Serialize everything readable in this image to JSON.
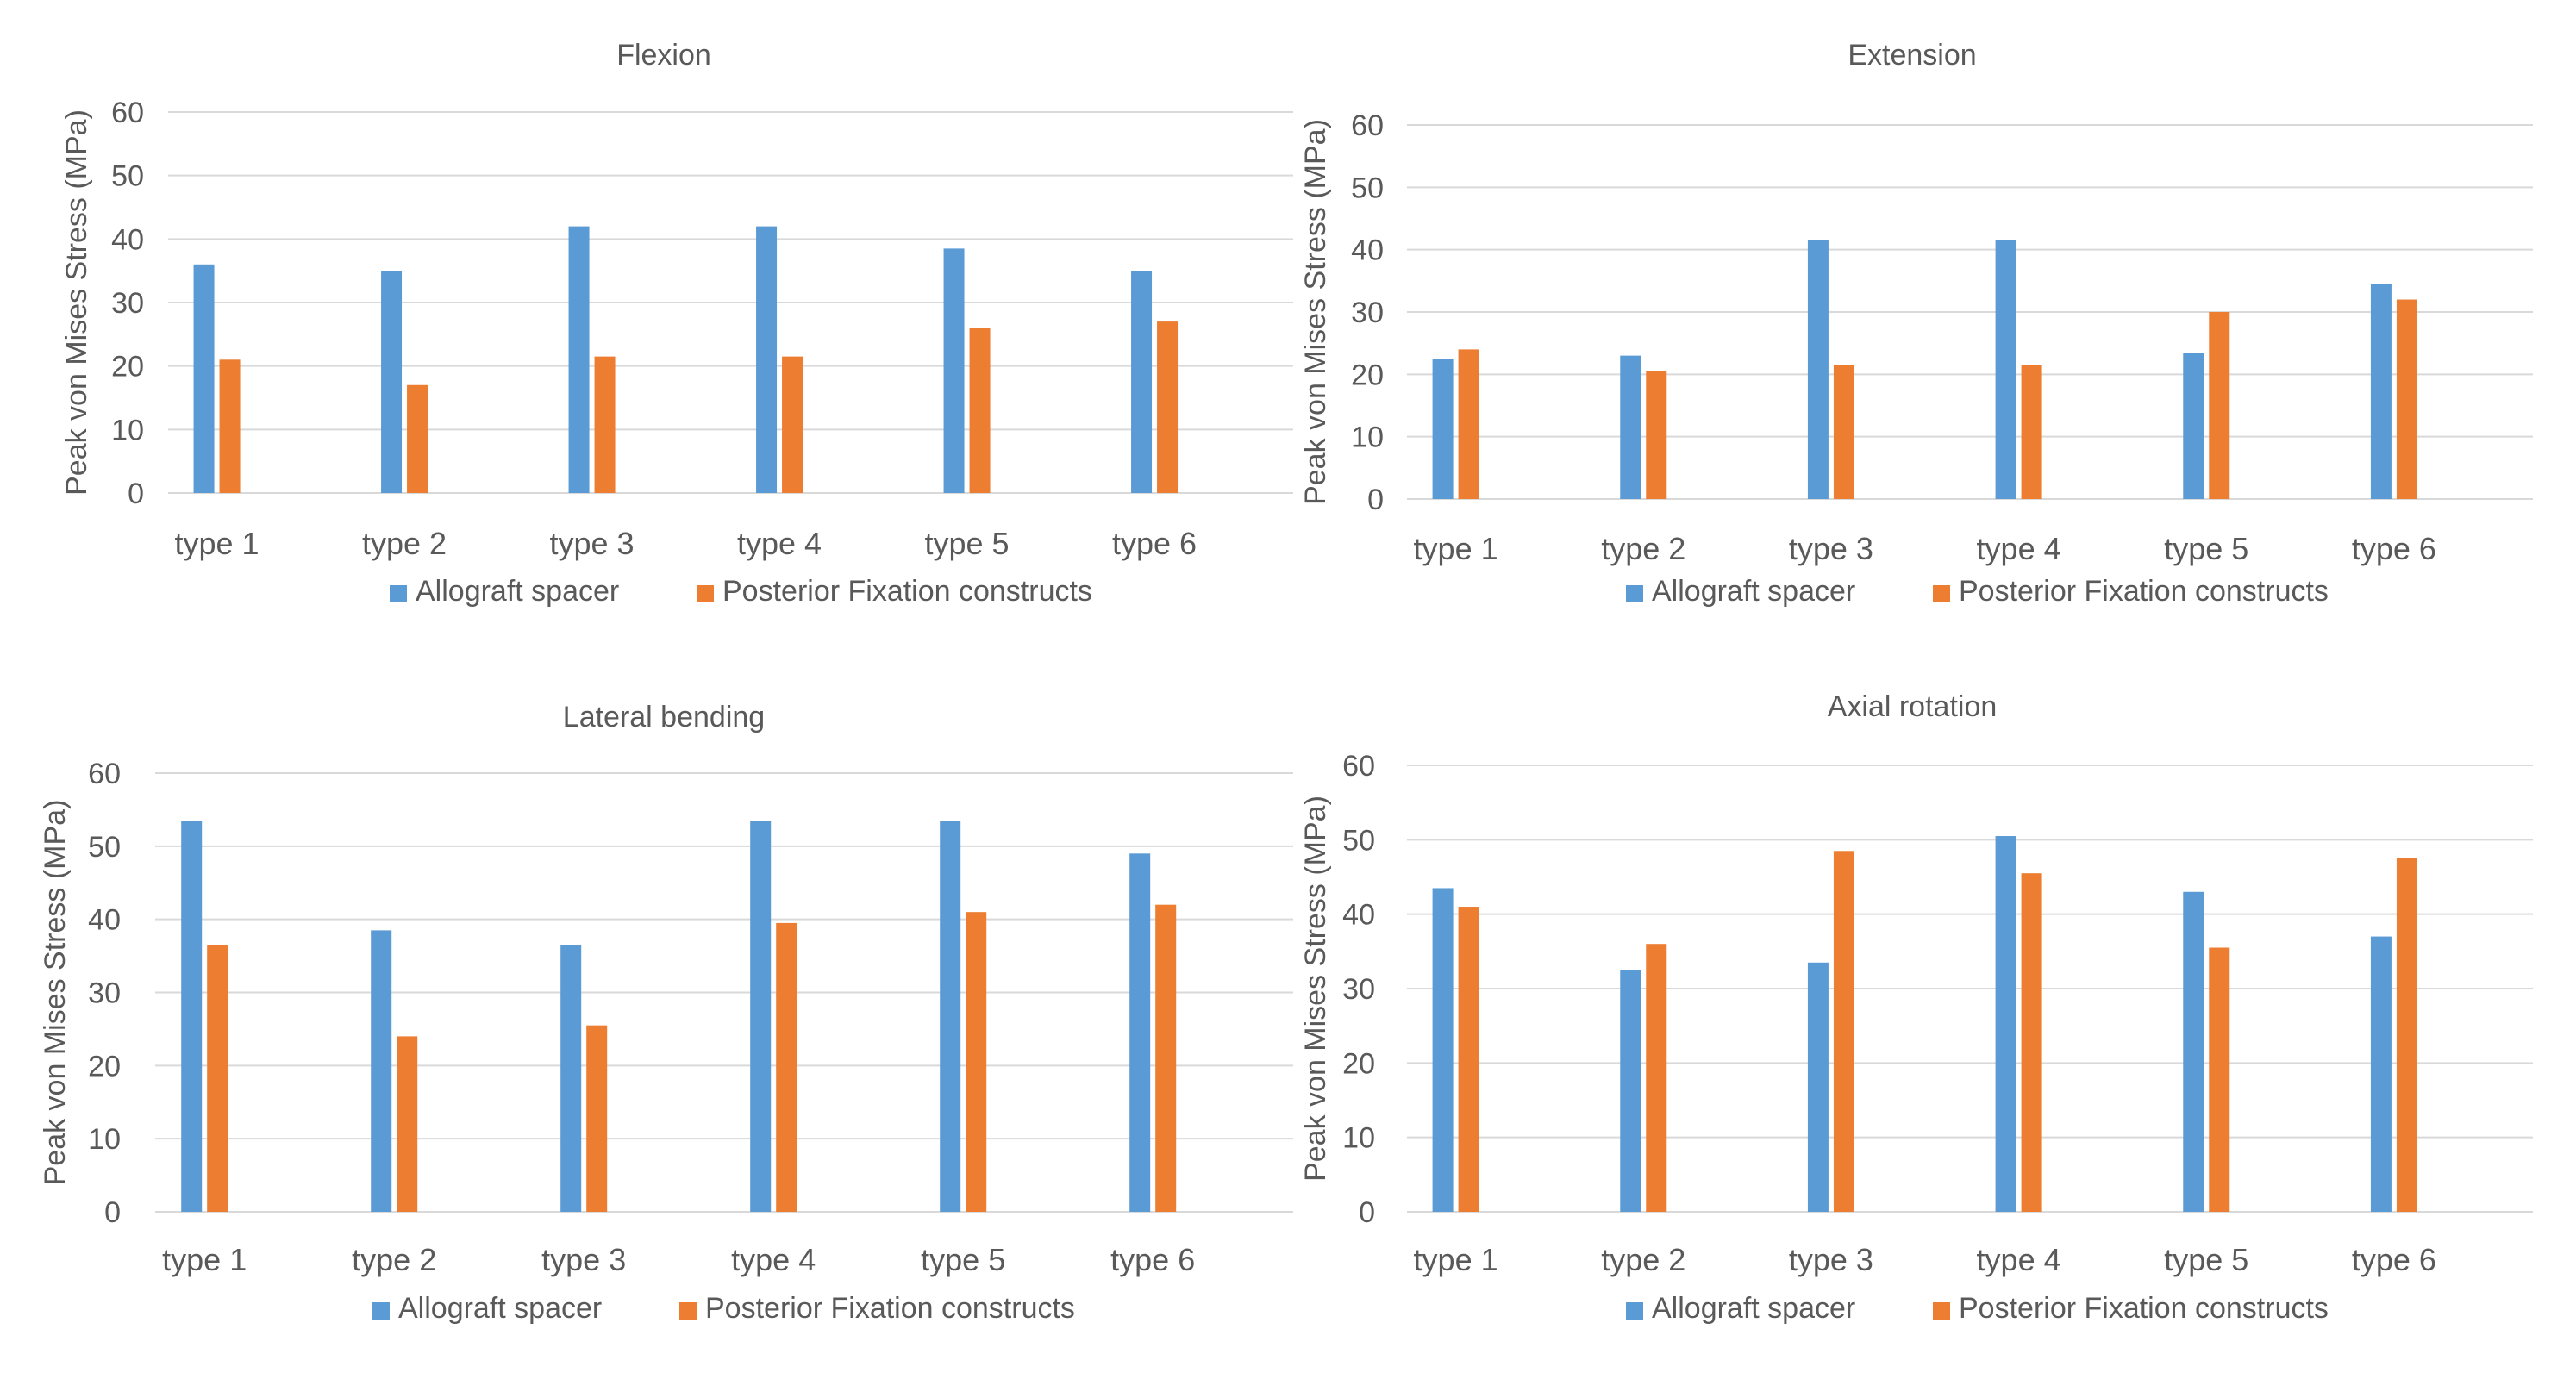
{
  "colors": {
    "series_1": "#5b9bd5",
    "series_2": "#ed7d31",
    "gridline": "#d9d9d9",
    "text": "#595959"
  },
  "legend": {
    "series_1": "Allograft spacer",
    "series_2": "Posterior Fixation constructs"
  },
  "chart_data": [
    {
      "type": "bar",
      "title": "Flexion",
      "ylabel": "Peak  von Mises Stress (MPa)",
      "xlabel": "",
      "ylim": [
        0,
        60
      ],
      "yticks": [
        0,
        10,
        20,
        30,
        40,
        50,
        60
      ],
      "categories": [
        "type 1",
        "type 2",
        "type 3",
        "type 4",
        "type 5",
        "type 6"
      ],
      "series": [
        {
          "name": "Allograft spacer",
          "values": [
            36,
            35,
            42,
            42,
            38.5,
            35
          ]
        },
        {
          "name": "Posterior Fixation constructs",
          "values": [
            21,
            17,
            21.5,
            21.5,
            26,
            27
          ]
        }
      ]
    },
    {
      "type": "bar",
      "title": "Extension",
      "ylabel": "Peak  von Mises Stress (MPa)",
      "xlabel": "",
      "ylim": [
        0,
        60
      ],
      "yticks": [
        0,
        10,
        20,
        30,
        40,
        50,
        60
      ],
      "categories": [
        "type 1",
        "type 2",
        "type 3",
        "type 4",
        "type 5",
        "type 6"
      ],
      "series": [
        {
          "name": "Allograft spacer",
          "values": [
            22.5,
            23,
            41.5,
            41.5,
            23.5,
            34.5
          ]
        },
        {
          "name": "Posterior Fixation constructs",
          "values": [
            24,
            20.5,
            21.5,
            21.5,
            30,
            32
          ]
        }
      ]
    },
    {
      "type": "bar",
      "title": "Lateral bending",
      "ylabel": "Peak  von Mises Stress (MPa)",
      "xlabel": "",
      "ylim": [
        0,
        60
      ],
      "yticks": [
        0,
        10,
        20,
        30,
        40,
        50,
        60
      ],
      "categories": [
        "type 1",
        "type 2",
        "type 3",
        "type 4",
        "type 5",
        "type 6"
      ],
      "series": [
        {
          "name": "Allograft spacer",
          "values": [
            53.5,
            38.5,
            36.5,
            53.5,
            53.5,
            49
          ]
        },
        {
          "name": "Posterior Fixation constructs",
          "values": [
            36.5,
            24,
            25.5,
            39.5,
            41,
            42
          ]
        }
      ]
    },
    {
      "type": "bar",
      "title": "Axial rotation",
      "ylabel": "Peak  von Mises Stress (MPa)",
      "xlabel": "",
      "ylim": [
        0,
        60
      ],
      "yticks": [
        0,
        10,
        20,
        30,
        40,
        50,
        60
      ],
      "categories": [
        "type 1",
        "type 2",
        "type 3",
        "type 4",
        "type 5",
        "type 6"
      ],
      "series": [
        {
          "name": "Allograft spacer",
          "values": [
            43.5,
            32.5,
            33.5,
            50.5,
            43,
            37
          ]
        },
        {
          "name": "Posterior Fixation constructs",
          "values": [
            41,
            36,
            48.5,
            45.5,
            35.5,
            47.5
          ]
        }
      ]
    }
  ]
}
